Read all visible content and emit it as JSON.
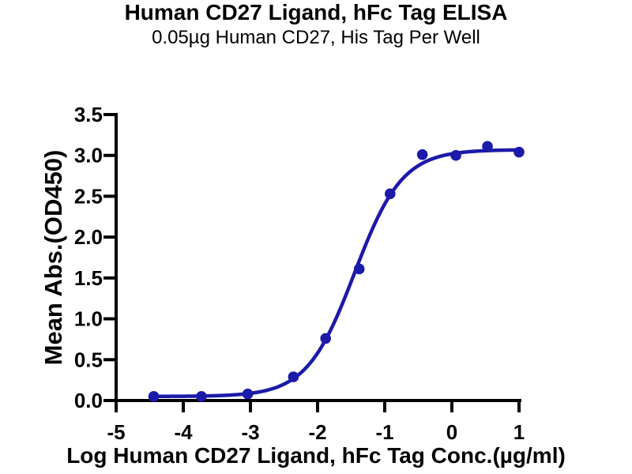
{
  "chart_data": {
    "type": "scatter",
    "curve_type": "4PL sigmoid dose-response fit",
    "title": "Human CD27 Ligand, hFc Tag ELISA",
    "subtitle": "0.05µg Human CD27, His Tag Per Well",
    "xlabel": "Log Human CD27 Ligand, hFc Tag Conc.(µg/ml)",
    "ylabel": "Mean Abs.(OD450)",
    "xlim": [
      -5,
      1
    ],
    "ylim": [
      0,
      3.5
    ],
    "xticks": [
      -5,
      -4,
      -3,
      -2,
      -1,
      0,
      1
    ],
    "xtick_labels": [
      "-5",
      "-4",
      "-3",
      "-2",
      "-1",
      "0",
      "1"
    ],
    "yticks": [
      0,
      0.5,
      1.0,
      1.5,
      2.0,
      2.5,
      3.0,
      3.5
    ],
    "ytick_labels": [
      "0.0",
      "0.5",
      "1.0",
      "1.5",
      "2.0",
      "2.5",
      "3.0",
      "3.5"
    ],
    "grid": false,
    "legend": "none",
    "axis_color": "#000000",
    "background": "#ffffff",
    "series": [
      {
        "name": "Human CD27 Ligand, hFc Tag",
        "color": "#1c1aa8",
        "x": [
          -4.44,
          -3.73,
          -3.04,
          -2.36,
          -1.88,
          -1.38,
          -0.92,
          -0.44,
          0.06,
          0.53,
          1.0
        ],
        "y": [
          0.05,
          0.05,
          0.08,
          0.29,
          0.76,
          1.61,
          2.53,
          3.01,
          3.0,
          3.11,
          3.04
        ]
      }
    ],
    "fit_4pl": {
      "bottom": 0.05,
      "top": 3.07,
      "log_ec50": -1.45,
      "hill": 1.22
    }
  }
}
